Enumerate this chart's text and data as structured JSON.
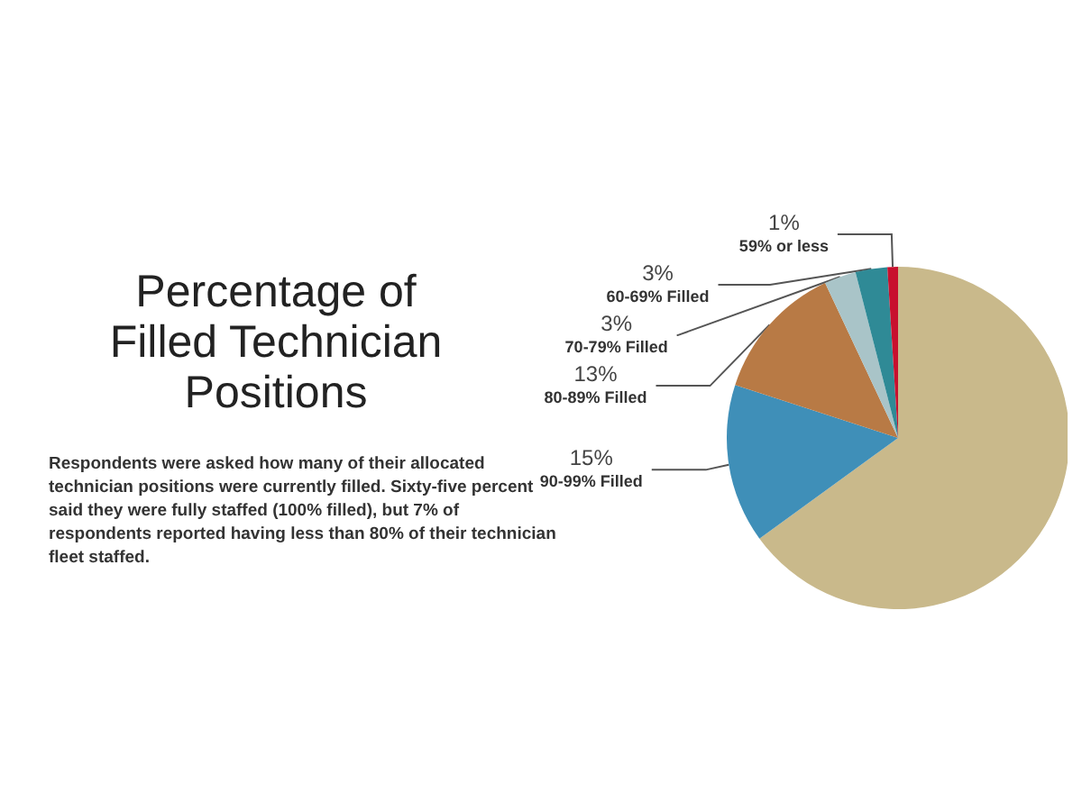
{
  "chart_data": {
    "type": "pie",
    "title": "Percentage of\nFilled Technician\nPositions",
    "subtitle": "Respondents were asked how many of their allocated technician positions were currently filled. Sixty-five percent said they were fully staffed (100% filled), but 7% of respondents reported having less than 80% of their technician fleet staffed.",
    "categories": [
      null,
      "90-99% Filled",
      "80-89% Filled",
      "70-79% Filled",
      "60-69% Filled",
      "59% or less"
    ],
    "values": [
      65,
      15,
      13,
      3,
      3,
      1
    ],
    "colors": [
      "#c9b98b",
      "#3f8fb8",
      "#b87a45",
      "#a9c4c8",
      "#2f8a96",
      "#c8102e"
    ],
    "value_labels": [
      null,
      "15%",
      "13%",
      "3%",
      "3%",
      "1%"
    ],
    "legend": false
  }
}
